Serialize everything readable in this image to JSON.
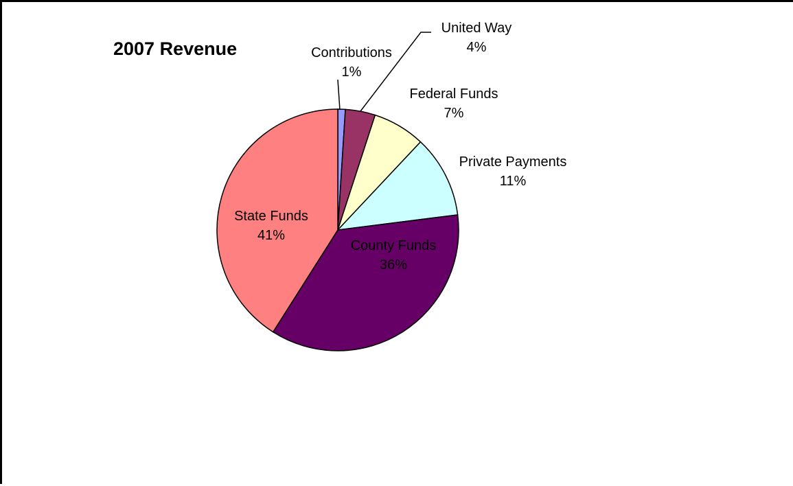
{
  "chart_data": {
    "type": "pie",
    "title": "2007 Revenue",
    "start_angle_deg": 0,
    "direction": "clockwise",
    "slices": [
      {
        "label": "Contributions",
        "value": 1,
        "value_label": "1%",
        "color": "#9999FF"
      },
      {
        "label": "United Way",
        "value": 4,
        "value_label": "4%",
        "color": "#993366"
      },
      {
        "label": "Federal Funds",
        "value": 7,
        "value_label": "7%",
        "color": "#FFFFCC"
      },
      {
        "label": "Private Payments",
        "value": 11,
        "value_label": "11%",
        "color": "#CCFFFF"
      },
      {
        "label": "County Funds",
        "value": 36,
        "value_label": "36%",
        "color": "#660066"
      },
      {
        "label": "State Funds",
        "value": 41,
        "value_label": "41%",
        "color": "#FF8080"
      }
    ]
  }
}
